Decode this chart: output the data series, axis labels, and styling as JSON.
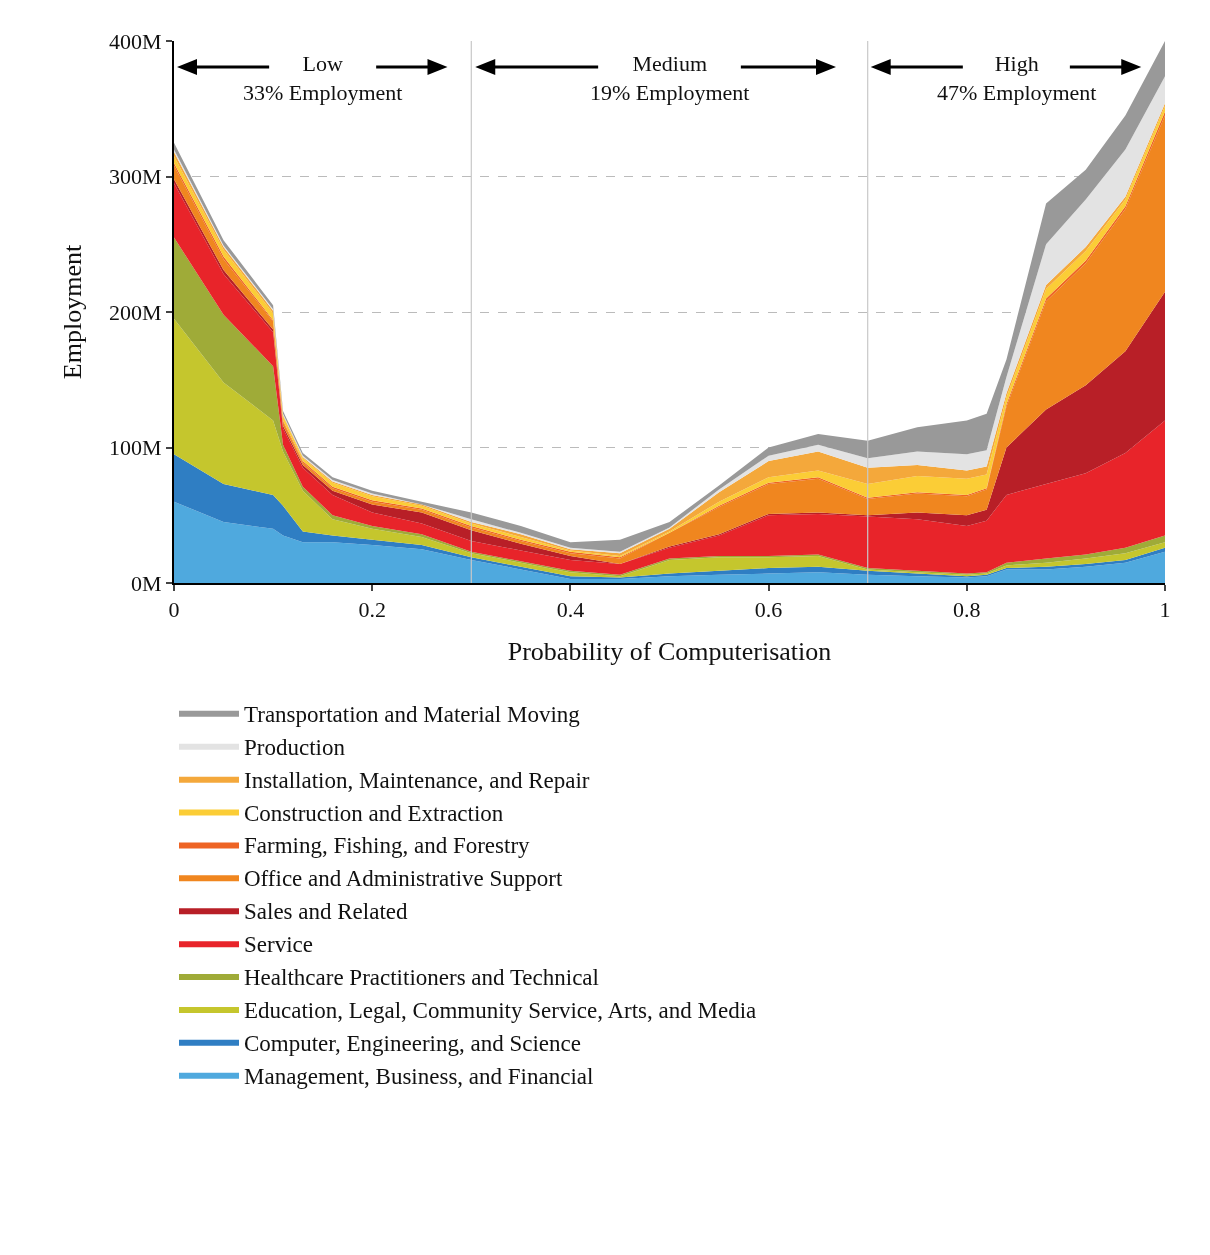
{
  "chart_data": {
    "type": "area",
    "stacked": true,
    "xlabel": "Probability of Computerisation",
    "ylabel": "Employment",
    "x": [
      0,
      0.05,
      0.1,
      0.11,
      0.13,
      0.16,
      0.2,
      0.25,
      0.3,
      0.35,
      0.4,
      0.45,
      0.5,
      0.55,
      0.6,
      0.65,
      0.7,
      0.75,
      0.8,
      0.82,
      0.84,
      0.88,
      0.92,
      0.96,
      1
    ],
    "series": [
      {
        "name": "Management, Business, and Financial",
        "color": "#4fa9de",
        "values": [
          60,
          45,
          40,
          35,
          30,
          30,
          28,
          25,
          17,
          10,
          3,
          3,
          5,
          6,
          7,
          8,
          6,
          5,
          4,
          5,
          10,
          10,
          12,
          15,
          23
        ]
      },
      {
        "name": "Computer, Engineering, and Science",
        "color": "#2f7ec3",
        "values": [
          35,
          28,
          25,
          22,
          8,
          5,
          4,
          3,
          2,
          2,
          2,
          1,
          2,
          3,
          4,
          4,
          3,
          2,
          1,
          1,
          1,
          2,
          2,
          2,
          3
        ]
      },
      {
        "name": "Education, Legal, Community Service, Arts, and Media",
        "color": "#c5c62d",
        "values": [
          100,
          75,
          55,
          40,
          30,
          12,
          8,
          6,
          3,
          3,
          3,
          1,
          10,
          10,
          8,
          8,
          1,
          1,
          1,
          1,
          2,
          3,
          4,
          5,
          4
        ]
      },
      {
        "name": "Healthcare Practitioners and Technical",
        "color": "#9fab38",
        "values": [
          60,
          50,
          40,
          5,
          3,
          3,
          2,
          2,
          1,
          1,
          1,
          1,
          1,
          1,
          1,
          1,
          1,
          1,
          1,
          1,
          2,
          3,
          3,
          4,
          5
        ]
      },
      {
        "name": "Service",
        "color": "#e8242a",
        "values": [
          40,
          30,
          25,
          12,
          14,
          15,
          10,
          8,
          8,
          8,
          8,
          8,
          8,
          15,
          30,
          30,
          38,
          38,
          35,
          38,
          50,
          55,
          60,
          70,
          85
        ]
      },
      {
        "name": "Sales and Related",
        "color": "#b81f27",
        "values": [
          3,
          3,
          2,
          2,
          2,
          3,
          6,
          8,
          8,
          5,
          3,
          0,
          1,
          1,
          1,
          1,
          1,
          5,
          8,
          8,
          35,
          55,
          65,
          75,
          95
        ]
      },
      {
        "name": "Office and Administrative Support",
        "color": "#f0861f",
        "values": [
          10,
          8,
          6,
          3,
          2,
          2,
          2,
          2,
          2,
          2,
          2,
          4,
          10,
          20,
          22,
          25,
          12,
          14,
          14,
          15,
          30,
          80,
          90,
          105,
          130
        ]
      },
      {
        "name": "Farming, Fishing, and Forestry",
        "color": "#ee6424",
        "values": [
          2,
          2,
          1,
          1,
          1,
          1,
          1,
          1,
          1,
          1,
          1,
          1,
          0,
          1,
          1,
          1,
          1,
          1,
          1,
          1,
          2,
          2,
          2,
          2,
          3
        ]
      },
      {
        "name": "Construction and Extraction",
        "color": "#fbcd36",
        "values": [
          5,
          5,
          5,
          3,
          2,
          3,
          3,
          2,
          2,
          2,
          1,
          1,
          1,
          3,
          4,
          5,
          10,
          12,
          12,
          10,
          5,
          7,
          7,
          5,
          4
        ]
      },
      {
        "name": "Installation, Maintenance, and Repair",
        "color": "#f4a83b",
        "values": [
          3,
          2,
          2,
          1,
          1,
          1,
          1,
          1,
          1,
          2,
          1,
          2,
          2,
          7,
          12,
          14,
          12,
          8,
          6,
          6,
          3,
          3,
          3,
          2,
          2
        ]
      },
      {
        "name": "Production",
        "color": "#e3e3e3",
        "values": [
          2,
          1,
          1,
          1,
          1,
          1,
          1,
          0,
          2,
          1,
          1,
          1,
          1,
          2,
          4,
          5,
          7,
          10,
          12,
          12,
          12,
          30,
          35,
          35,
          20
        ]
      },
      {
        "name": "Transportation and Material Moving",
        "color": "#999999",
        "values": [
          5,
          4,
          3,
          2,
          2,
          2,
          2,
          2,
          5,
          5,
          4,
          9,
          4,
          3,
          6,
          8,
          13,
          18,
          25,
          27,
          13,
          30,
          22,
          25,
          26
        ]
      }
    ],
    "xlim": [
      0,
      1
    ],
    "xticks": [
      0,
      0.2,
      0.4,
      0.6,
      0.8,
      1
    ],
    "ylim": [
      0,
      400
    ],
    "yticks": [
      {
        "value": 0,
        "label": "0M"
      },
      {
        "value": 100,
        "label": "100M"
      },
      {
        "value": 200,
        "label": "200M"
      },
      {
        "value": 300,
        "label": "300M"
      },
      {
        "value": 400,
        "label": "400M"
      }
    ],
    "ref_lines": [
      {
        "axis": "x",
        "value": 0.3,
        "color": "#c8c8c8"
      },
      {
        "axis": "x",
        "value": 0.7,
        "color": "#c8c8c8"
      }
    ],
    "annotations": [
      "Low\n33% Employment",
      "Medium\n19% Employment",
      "High\n47% Employment"
    ],
    "grid": "y",
    "legend": "bottom"
  }
}
